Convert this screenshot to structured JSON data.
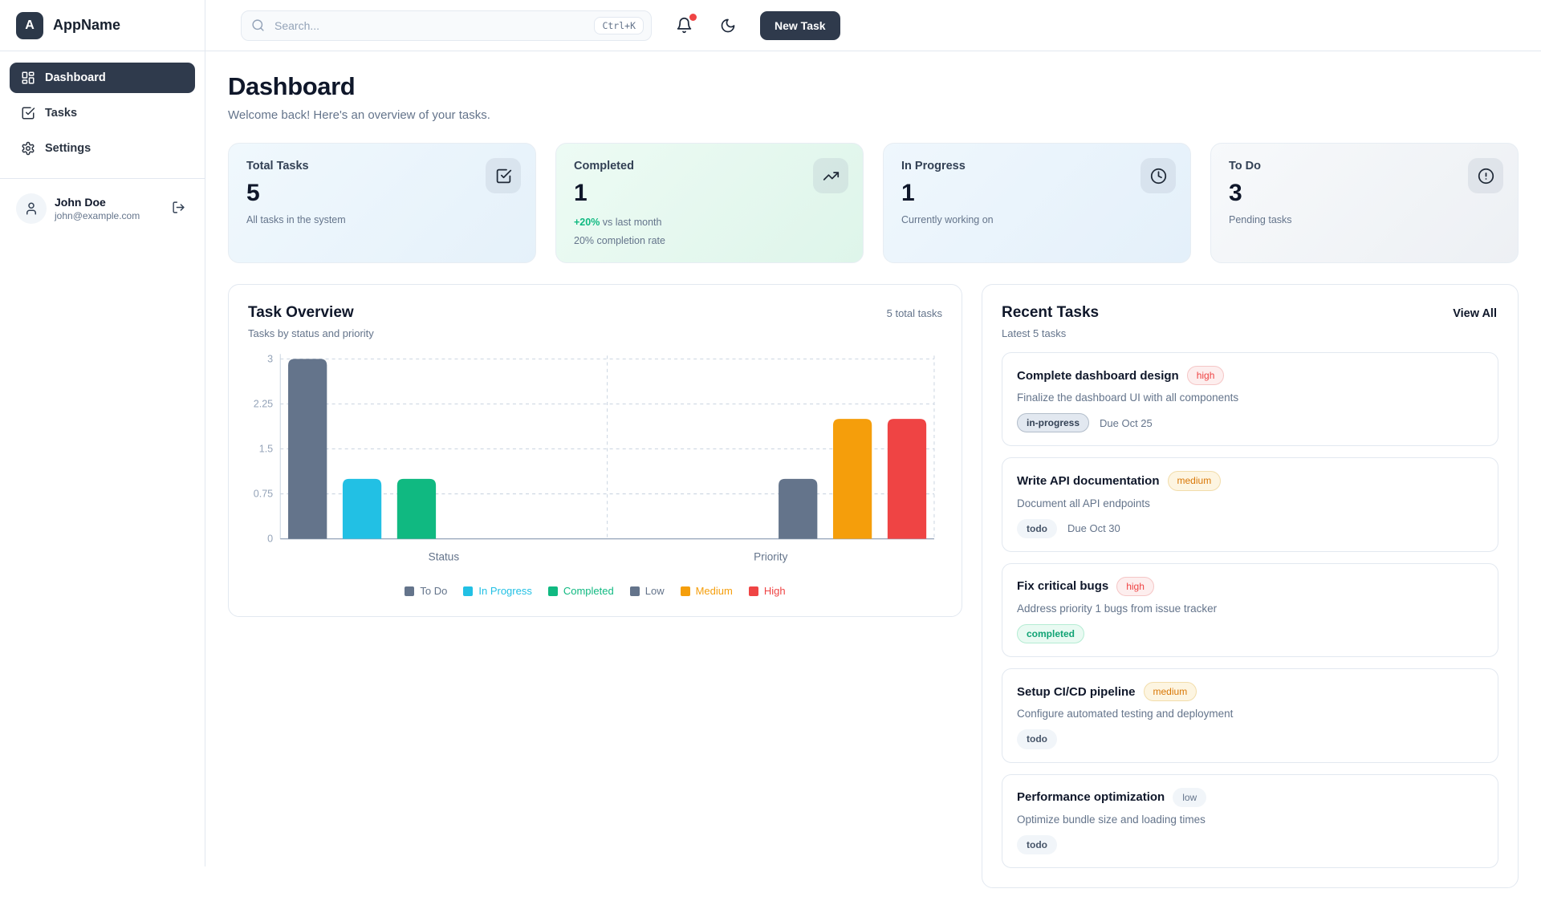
{
  "app": {
    "name": "AppName",
    "logo_letter": "A"
  },
  "sidebar": {
    "nav": [
      {
        "label": "Dashboard",
        "icon": "layout-dashboard",
        "icon_name": "dashboard-icon",
        "active": true
      },
      {
        "label": "Tasks",
        "icon": "check-square",
        "icon_name": "tasks-icon",
        "active": false
      },
      {
        "label": "Settings",
        "icon": "settings",
        "icon_name": "settings-gear-icon",
        "active": false
      }
    ],
    "user": {
      "name": "John Doe",
      "email": "john@example.com"
    }
  },
  "topbar": {
    "search_placeholder": "Search...",
    "search_shortcut": "Ctrl+K",
    "new_task_label": "New Task",
    "has_notification": true
  },
  "page": {
    "title": "Dashboard",
    "subtitle": "Welcome back! Here's an overview of your tasks."
  },
  "stats": [
    {
      "label": "Total Tasks",
      "value": "5",
      "sub": "All tasks in the system",
      "icon": "check-square",
      "icon_name": "check-square-icon",
      "bg_from": "#f0f8fd",
      "bg_to": "#e5f1fa"
    },
    {
      "label": "Completed",
      "value": "1",
      "trend": "+20%",
      "trend_suffix": "vs last month",
      "sub": "20% completion rate",
      "icon": "trending-up",
      "icon_name": "trending-up-icon",
      "bg_from": "#edfbf4",
      "bg_to": "#def5ea"
    },
    {
      "label": "In Progress",
      "value": "1",
      "sub": "Currently working on",
      "icon": "clock",
      "icon_name": "clock-icon",
      "bg_from": "#eff7fd",
      "bg_to": "#e4f0fa"
    },
    {
      "label": "To Do",
      "value": "3",
      "sub": "Pending tasks",
      "icon": "alert-circle",
      "icon_name": "alert-circle-icon",
      "bg_from": "#f7f9fb",
      "bg_to": "#edf0f4"
    }
  ],
  "chart_card": {
    "title": "Task Overview",
    "subtitle": "Tasks by status and priority",
    "total": "5 total tasks"
  },
  "chart_data": {
    "type": "bar",
    "categories": [
      "Status",
      "Priority"
    ],
    "series": [
      {
        "name": "To Do",
        "category": "Status",
        "value": 3,
        "color": "#64748b"
      },
      {
        "name": "In Progress",
        "category": "Status",
        "value": 1,
        "color": "#22c0e4"
      },
      {
        "name": "Completed",
        "category": "Status",
        "value": 1,
        "color": "#10b981"
      },
      {
        "name": "Low",
        "category": "Priority",
        "value": 1,
        "color": "#64748b"
      },
      {
        "name": "Medium",
        "category": "Priority",
        "value": 2,
        "color": "#f59e0b"
      },
      {
        "name": "High",
        "category": "Priority",
        "value": 2,
        "color": "#ef4444"
      }
    ],
    "yticks": [
      0,
      0.75,
      1.5,
      2.25,
      3
    ],
    "ylim": [
      0,
      3
    ],
    "grid": true,
    "legend_position": "bottom"
  },
  "recent": {
    "title": "Recent Tasks",
    "subtitle": "Latest 5 tasks",
    "view_all_label": "View All",
    "tasks": [
      {
        "title": "Complete dashboard design",
        "priority": "high",
        "description": "Finalize the dashboard UI with all components",
        "status": "in-progress",
        "due": "Due Oct 25"
      },
      {
        "title": "Write API documentation",
        "priority": "medium",
        "description": "Document all API endpoints",
        "status": "todo",
        "due": "Due Oct 30"
      },
      {
        "title": "Fix critical bugs",
        "priority": "high",
        "description": "Address priority 1 bugs from issue tracker",
        "status": "completed",
        "due": ""
      },
      {
        "title": "Setup CI/CD pipeline",
        "priority": "medium",
        "description": "Configure automated testing and deployment",
        "status": "todo",
        "due": ""
      },
      {
        "title": "Performance optimization",
        "priority": "low",
        "description": "Optimize bundle size and loading times",
        "status": "todo",
        "due": ""
      }
    ]
  },
  "theme": {
    "accent_dark": "#2f3a4c",
    "border": "#e2e8f0",
    "muted_text": "#64748b",
    "trend_green": "#10b981",
    "notification_red": "#ef4444",
    "grid_line": "#cbd5e1",
    "axis_line": "#94a3b8"
  }
}
